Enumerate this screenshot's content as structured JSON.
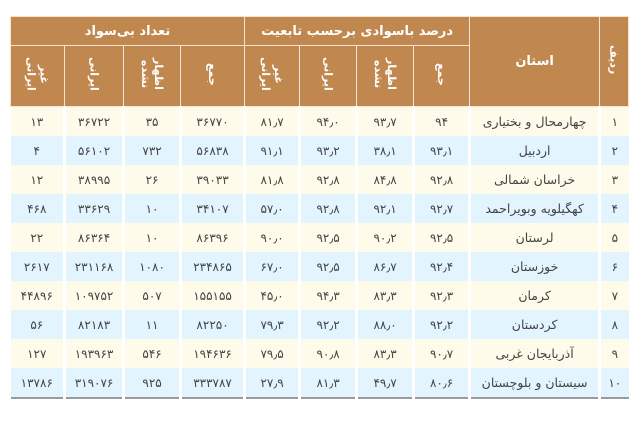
{
  "header": {
    "index": "ردیف",
    "province": "استان",
    "group_literacy": "درصد باسوادی برحسب تابعیت",
    "group_illiterate": "تعداد بی‌سواد",
    "sub": [
      "جمع",
      "اظهار نشده",
      "ایرانی",
      "غیر ایرانی"
    ]
  },
  "colors": {
    "header_bg": "#c0884f",
    "row_odd": "#fffbea",
    "row_even": "#e2f4fd"
  },
  "rows": [
    [
      "۱",
      "چهارمحال و بختیاری",
      "۹۴",
      "۹۳٫۷",
      "۹۴٫۰",
      "۸۱٫۷",
      "۳۶۷۷۰",
      "۳۵",
      "۳۶۷۲۲",
      "۱۳"
    ],
    [
      "۲",
      "اردبیل",
      "۹۳٫۱",
      "۳۸٫۱",
      "۹۳٫۲",
      "۹۱٫۱",
      "۵۶۸۳۸",
      "۷۳۲",
      "۵۶۱۰۲",
      "۴"
    ],
    [
      "۳",
      "خراسان شمالی",
      "۹۲٫۸",
      "۸۴٫۸",
      "۹۲٫۸",
      "۸۱٫۸",
      "۳۹۰۳۳",
      "۲۶",
      "۳۸۹۹۵",
      "۱۲"
    ],
    [
      "۴",
      "کهگیلویه وبویراحمد",
      "۹۲٫۷",
      "۹۲٫۱",
      "۹۲٫۸",
      "۵۷٫۰",
      "۳۴۱۰۷",
      "۱۰",
      "۳۳۶۲۹",
      "۴۶۸"
    ],
    [
      "۵",
      "لرستان",
      "۹۲٫۵",
      "۹۰٫۲",
      "۹۲٫۵",
      "۹۰٫۰",
      "۸۶۳۹۶",
      "۱۰",
      "۸۶۳۶۴",
      "۲۲"
    ],
    [
      "۶",
      "خوزستان",
      "۹۲٫۴",
      "۸۶٫۷",
      "۹۲٫۵",
      "۶۷٫۰",
      "۲۳۴۸۶۵",
      "۱۰۸۰",
      "۲۳۱۱۶۸",
      "۲۶۱۷"
    ],
    [
      "۷",
      "کرمان",
      "۹۲٫۳",
      "۸۳٫۳",
      "۹۴٫۳",
      "۴۵٫۰",
      "۱۵۵۱۵۵",
      "۵۰۷",
      "۱۰۹۷۵۲",
      "۴۴۸۹۶"
    ],
    [
      "۸",
      "کردستان",
      "۹۲٫۲",
      "۸۸٫۰",
      "۹۲٫۲",
      "۷۹٫۳",
      "۸۲۲۵۰",
      "۱۱",
      "۸۲۱۸۳",
      "۵۶"
    ],
    [
      "۹",
      "آذربایجان غربی",
      "۹۰٫۷",
      "۸۳٫۳",
      "۹۰٫۸",
      "۷۹٫۵",
      "۱۹۴۶۳۶",
      "۵۴۶",
      "۱۹۳۹۶۳",
      "۱۲۷"
    ],
    [
      "۱۰",
      "سیستان و بلوچستان",
      "۸۰٫۶",
      "۴۹٫۷",
      "۸۱٫۳",
      "۲۷٫۹",
      "۳۳۳۷۸۷",
      "۹۲۵",
      "۳۱۹۰۷۶",
      "۱۳۷۸۶"
    ]
  ]
}
